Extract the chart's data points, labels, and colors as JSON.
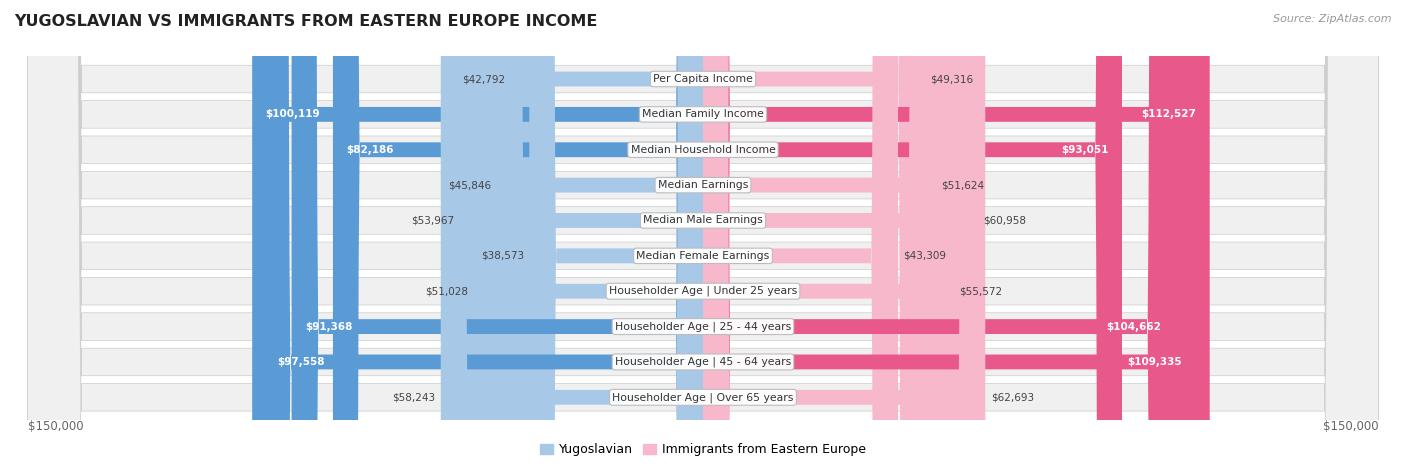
{
  "title": "YUGOSLAVIAN VS IMMIGRANTS FROM EASTERN EUROPE INCOME",
  "source": "Source: ZipAtlas.com",
  "categories": [
    "Per Capita Income",
    "Median Family Income",
    "Median Household Income",
    "Median Earnings",
    "Median Male Earnings",
    "Median Female Earnings",
    "Householder Age | Under 25 years",
    "Householder Age | 25 - 44 years",
    "Householder Age | 45 - 64 years",
    "Householder Age | Over 65 years"
  ],
  "yugoslav_values": [
    42792,
    100119,
    82186,
    45846,
    53967,
    38573,
    51028,
    91368,
    97558,
    58243
  ],
  "immigrant_values": [
    49316,
    112527,
    93051,
    51624,
    60958,
    43309,
    55572,
    104662,
    109335,
    62693
  ],
  "yugoslav_labels": [
    "$42,792",
    "$100,119",
    "$82,186",
    "$45,846",
    "$53,967",
    "$38,573",
    "$51,028",
    "$91,368",
    "$97,558",
    "$58,243"
  ],
  "immigrant_labels": [
    "$49,316",
    "$112,527",
    "$93,051",
    "$51,624",
    "$60,958",
    "$43,309",
    "$55,572",
    "$104,662",
    "$109,335",
    "$62,693"
  ],
  "yugoslav_color_light": "#a8c8e8",
  "yugoslav_color_dark": "#5b9bd5",
  "immigrant_color_light": "#f8b8cc",
  "immigrant_color_dark": "#e8588a",
  "max_value": 150000,
  "axis_label_left": "$150,000",
  "axis_label_right": "$150,000",
  "legend_yugoslav": "Yugoslavian",
  "legend_immigrant": "Immigrants from Eastern Europe",
  "bg_color": "#ffffff",
  "row_bg": "#e8e8e8",
  "inner_bg": "#f5f5f5",
  "label_inside_threshold_yug": 65000,
  "label_inside_threshold_imm": 65000
}
